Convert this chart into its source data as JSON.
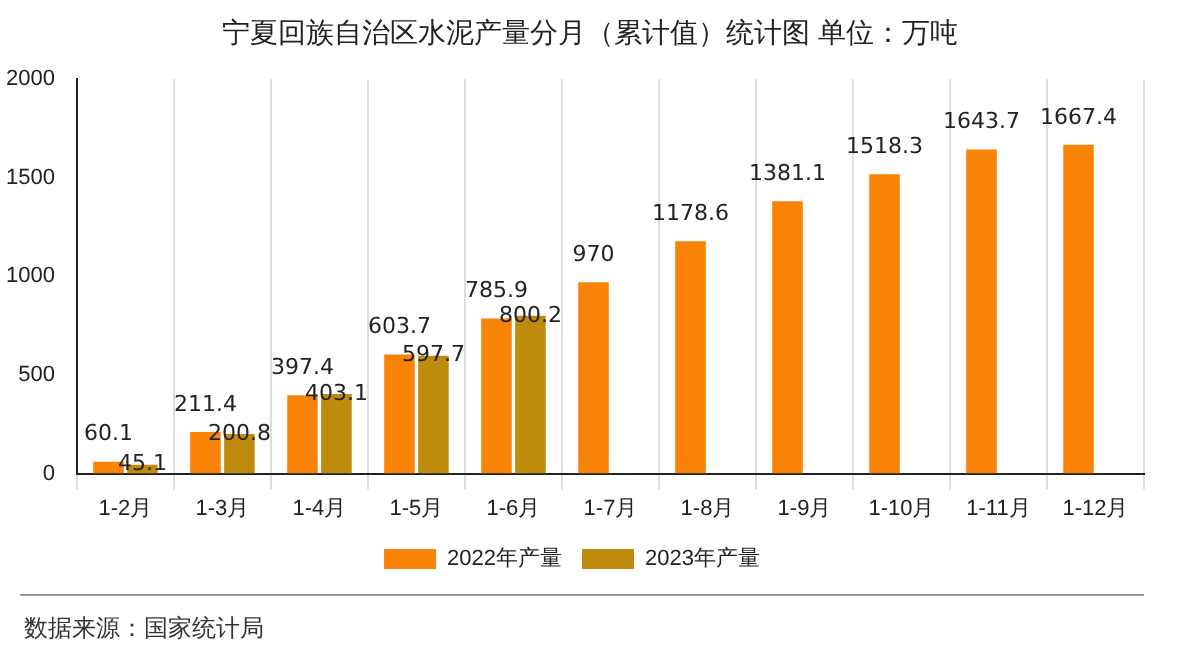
{
  "chart_data": {
    "type": "bar",
    "title": "宁夏回族自治区水泥产量分月（累计值）统计图 单位：万吨",
    "categories": [
      "1-2月",
      "1-3月",
      "1-4月",
      "1-5月",
      "1-6月",
      "1-7月",
      "1-8月",
      "1-9月",
      "1-10月",
      "1-11月",
      "1-12月"
    ],
    "series": [
      {
        "name": "2022年产量",
        "color": "#f98307",
        "values": [
          60.1,
          211.4,
          397.4,
          603.7,
          785.9,
          970,
          1178.6,
          1381.1,
          1518.3,
          1643.7,
          1667.4
        ]
      },
      {
        "name": "2023年产量",
        "color": "#bf8b0c",
        "values": [
          45.1,
          200.8,
          403.1,
          597.7,
          800.2,
          null,
          null,
          null,
          null,
          null,
          null
        ]
      }
    ],
    "ylim": [
      0,
      2000
    ],
    "yticks": [
      0,
      500,
      1000,
      1500,
      2000
    ],
    "grid": "x",
    "legend": "bottom",
    "data_labels": true,
    "annotations": [
      "数据来源：国家统计局"
    ]
  }
}
